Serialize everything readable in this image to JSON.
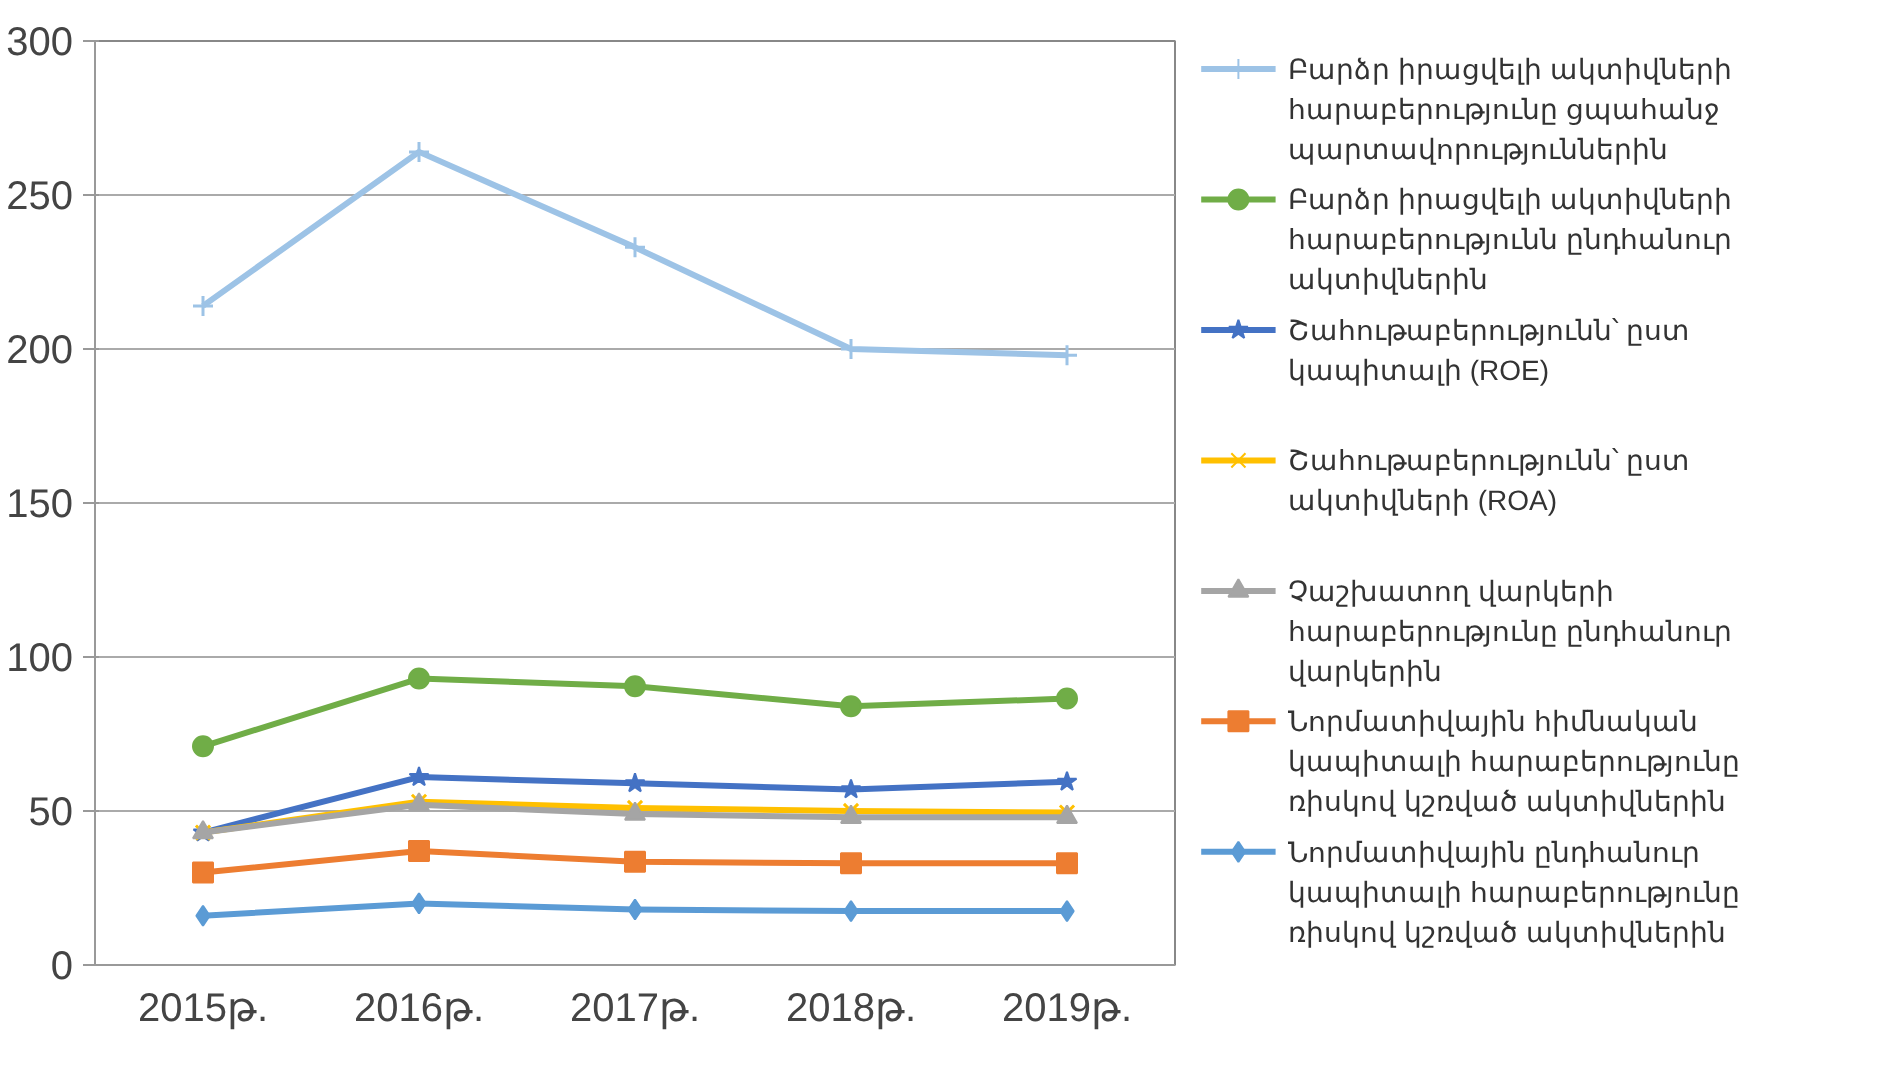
{
  "chart_data": {
    "type": "line",
    "categories": [
      "2015թ.",
      "2016թ.",
      "2017թ.",
      "2018թ.",
      "2019թ."
    ],
    "ylim": [
      0,
      300
    ],
    "yticks": [
      0,
      50,
      100,
      150,
      200,
      250,
      300
    ],
    "grid": "y",
    "legend": "right",
    "series": [
      {
        "name": "Բարձր իրացվելի ակտիվների հարաբերությունը ցպահանջ պարտավորություններին",
        "color": "#9dc3e6",
        "marker": "cross",
        "values": [
          214,
          264,
          233,
          200,
          198
        ]
      },
      {
        "name": "Բարձր իրացվելի ակտիվների հարաբերությունն ընդհանուր ակտիվներին",
        "color": "#70ad47",
        "marker": "circle",
        "values": [
          71,
          93,
          90.5,
          84,
          86.5
        ]
      },
      {
        "name": "Շահութաբերությունն՝ ըստ կապիտալի (ROE)",
        "color": "#4472c4",
        "marker": "star",
        "values": [
          43,
          61,
          59,
          57,
          59.5
        ]
      },
      {
        "name": "Շահութաբերությունն՝ ըստ ակտիվների (ROA)",
        "color": "#ffc000",
        "marker": "x",
        "values": [
          43,
          53,
          51,
          50,
          49.5
        ]
      },
      {
        "name": "Չաշխատող վարկերի հարաբերությունը ընդհանուր վարկերին",
        "color": "#a5a5a5",
        "marker": "triangle",
        "values": [
          43,
          52,
          49,
          48,
          48
        ]
      },
      {
        "name": "Նորմատիվային հիմնական կապիտալի հարաբերությունը ռիսկով կշռված ակտիվներին",
        "color": "#ed7d31",
        "marker": "square",
        "values": [
          30,
          37,
          33.5,
          33,
          33
        ]
      },
      {
        "name": "Նորմատիվային ընդհանուր կապիտալի հարաբերությունը ռիսկով կշռված ակտիվներին",
        "color": "#5b9bd5",
        "marker": "diamond",
        "values": [
          16,
          20,
          18,
          17.5,
          17.5
        ]
      }
    ]
  }
}
